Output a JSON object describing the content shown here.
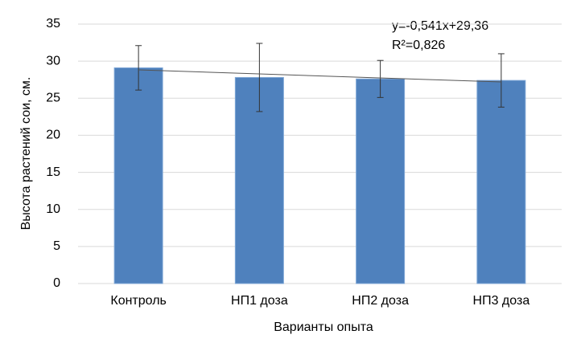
{
  "chart_data": {
    "type": "bar",
    "categories": [
      "Контроль",
      "НП1 доза",
      "НП2 доза",
      "НП3 доза"
    ],
    "values": [
      29.1,
      27.8,
      27.6,
      27.4
    ],
    "errors": [
      3.0,
      4.6,
      2.5,
      3.6
    ],
    "color": "#4f81bd",
    "y_label": "Высота растений сои, см.",
    "x_label": "Варианты опыта",
    "ylim": [
      0,
      35
    ],
    "yticks": [
      0,
      5,
      10,
      15,
      20,
      25,
      30,
      35
    ],
    "grid": true,
    "trendline": {
      "slope": -0.541,
      "intercept": 29.36,
      "equation": "y=-0,541x+29,36",
      "r2": "R²=0,826"
    }
  }
}
